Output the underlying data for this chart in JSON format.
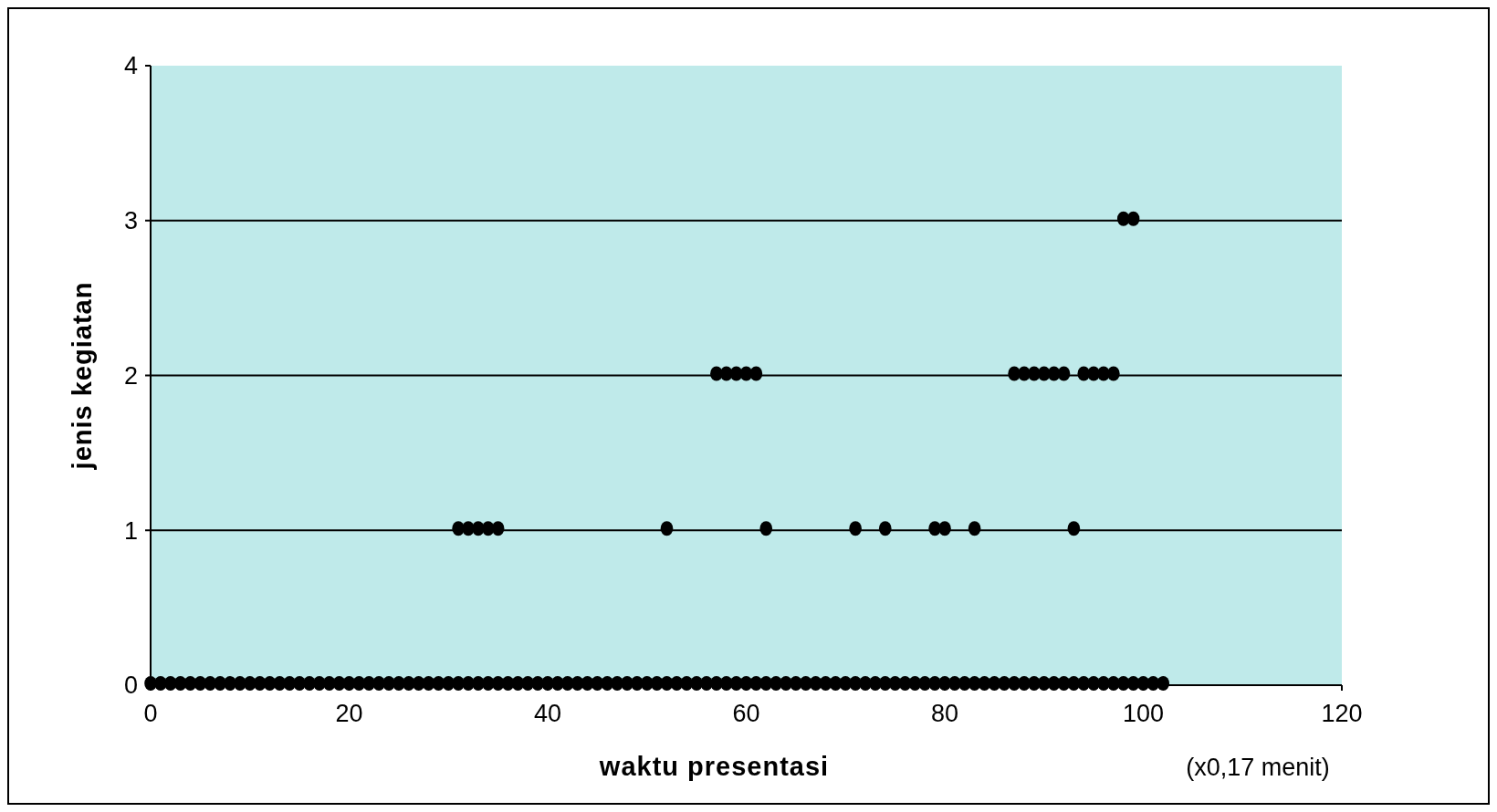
{
  "chart_data": {
    "type": "scatter",
    "xlabel": "waktu presentasi",
    "ylabel": "jenis kegiatan",
    "annotations": [
      "(x0,17 menit)"
    ],
    "series": [
      {
        "color": "#000000",
        "x": [
          0,
          1,
          2,
          3,
          4,
          5,
          6,
          7,
          8,
          9,
          10,
          11,
          12,
          13,
          14,
          15,
          16,
          17,
          18,
          19,
          20,
          21,
          22,
          23,
          24,
          25,
          26,
          27,
          28,
          29,
          30,
          31,
          32,
          33,
          34,
          35,
          36,
          37,
          38,
          39,
          40,
          41,
          42,
          43,
          44,
          45,
          46,
          47,
          48,
          49,
          50,
          51,
          52,
          53,
          54,
          55,
          56,
          57,
          58,
          59,
          60,
          61,
          62,
          63,
          64,
          65,
          66,
          67,
          68,
          69,
          70,
          71,
          72,
          73,
          74,
          75,
          76,
          77,
          78,
          79,
          80,
          81,
          82,
          83,
          84,
          85,
          86,
          87,
          88,
          89,
          90,
          91,
          92,
          93,
          94,
          95,
          96,
          97,
          98,
          99,
          100,
          101,
          102
        ],
        "values": [
          0,
          0,
          0,
          0,
          0,
          0,
          0,
          0,
          0,
          0,
          0,
          0,
          0,
          0,
          0,
          0,
          0,
          0,
          0,
          0,
          0,
          0,
          0,
          0,
          0,
          0,
          0,
          0,
          0,
          0,
          0,
          0,
          0,
          0,
          0,
          0,
          0,
          0,
          0,
          0,
          0,
          0,
          0,
          0,
          0,
          0,
          0,
          0,
          0,
          0,
          0,
          0,
          0,
          0,
          0,
          0,
          0,
          0,
          0,
          0,
          0,
          0,
          0,
          0,
          0,
          0,
          0,
          0,
          0,
          0,
          0,
          0,
          0,
          0,
          0,
          0,
          0,
          0,
          0,
          0,
          0,
          0,
          0,
          0,
          0,
          0,
          0,
          0,
          0,
          0,
          0,
          0,
          0,
          0,
          0,
          0,
          0,
          0,
          0,
          0,
          0,
          0,
          0
        ]
      },
      {
        "color": "#000000",
        "x": [
          31,
          32,
          33,
          34,
          35,
          52,
          62,
          71,
          74,
          79,
          80,
          83,
          93,
          57,
          58,
          59,
          60,
          61,
          87,
          88,
          89,
          90,
          91,
          92,
          94,
          95,
          96,
          97,
          98,
          99
        ],
        "values": [
          1,
          1,
          1,
          1,
          1,
          1,
          1,
          1,
          1,
          1,
          1,
          1,
          1,
          2,
          2,
          2,
          2,
          2,
          2,
          2,
          2,
          2,
          2,
          2,
          2,
          2,
          2,
          2,
          3,
          3
        ]
      }
    ],
    "xlim": [
      0,
      120
    ],
    "xticks": [
      0,
      20,
      40,
      60,
      80,
      100,
      120
    ],
    "ylim": [
      0,
      4
    ],
    "yticks": [
      0,
      1,
      2,
      3,
      4
    ],
    "grid": "y",
    "marker": "circle"
  }
}
